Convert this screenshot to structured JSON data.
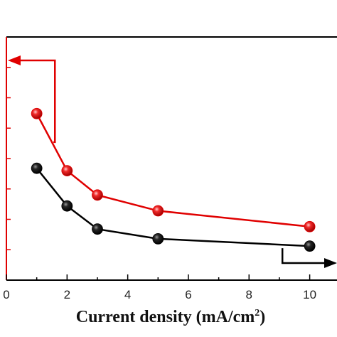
{
  "chart_data": {
    "type": "line",
    "xlabel": "Current density (mA/cm",
    "xlabel_sup": "2",
    "xlabel_close": ")",
    "xlim": [
      0,
      10.9
    ],
    "xticks": [
      0,
      2,
      4,
      6,
      8,
      10
    ],
    "x_tick_labels": [
      "0",
      "2",
      "4",
      "6",
      "8",
      "10"
    ],
    "ylim": [
      0,
      10
    ],
    "series": [
      {
        "color": "#e00000",
        "x": [
          1,
          2,
          3,
          5,
          10
        ],
        "y": [
          6.85,
          4.5,
          3.5,
          2.85,
          2.2
        ]
      },
      {
        "color": "#000000",
        "x": [
          1,
          2,
          3,
          5,
          10
        ],
        "y": [
          4.6,
          3.05,
          2.1,
          1.7,
          1.4
        ]
      }
    ],
    "left_axis_color": "#e00000",
    "right_axis_color": "#000000",
    "annotations": [
      {
        "kind": "arrow-left",
        "color": "#e00000",
        "series": 0
      },
      {
        "kind": "arrow-right",
        "color": "#000000",
        "series": 1
      }
    ],
    "grid": false,
    "legend": "none"
  }
}
